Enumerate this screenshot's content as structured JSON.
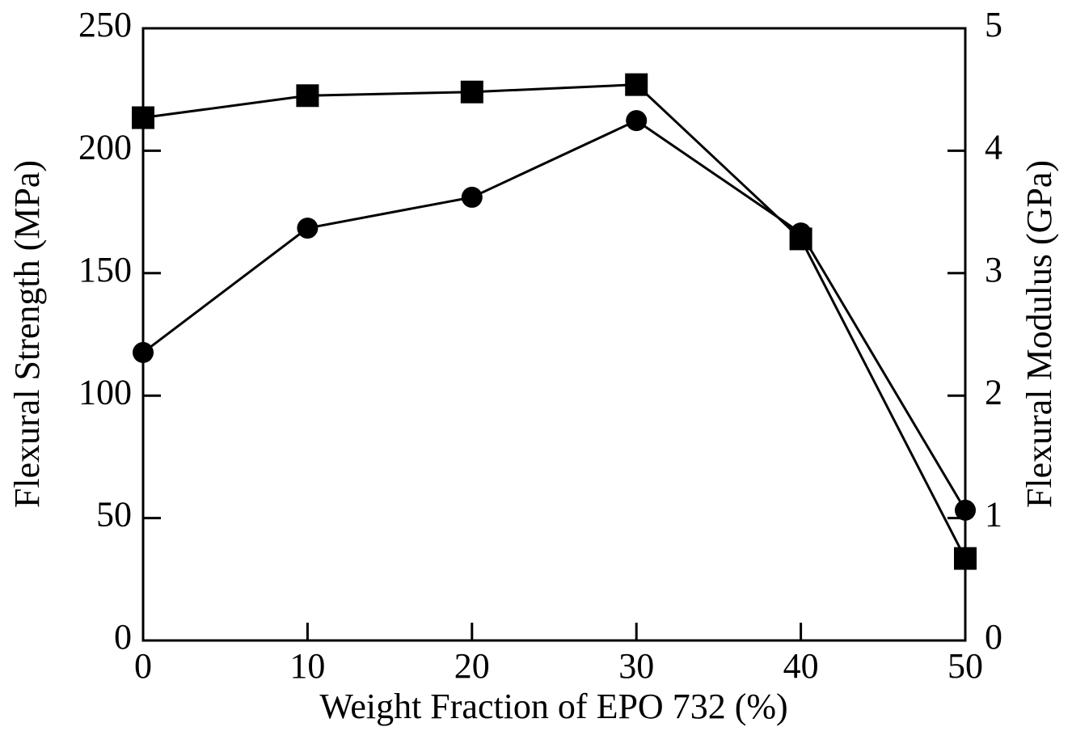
{
  "chart_data": {
    "type": "line",
    "xlabel": "Weight Fraction of EPO 732 (%)",
    "ylabel": "Flexural Strength (MPa)",
    "y2label": "Flexural Modulus (GPa)",
    "x": [
      0,
      10,
      20,
      30,
      40,
      50
    ],
    "xlim": [
      0,
      50
    ],
    "xticks": [
      0,
      10,
      20,
      30,
      40,
      50
    ],
    "ylim": [
      0,
      250
    ],
    "yticks": [
      0,
      50,
      100,
      150,
      200,
      250
    ],
    "y2lim": [
      0,
      5
    ],
    "y2ticks": [
      0,
      1,
      2,
      3,
      4,
      5
    ],
    "series": [
      {
        "marker": "circle",
        "color": "#000000",
        "values": [
          117.6,
          168.4,
          181,
          212.3,
          166.4,
          53.2
        ]
      },
      {
        "marker": "square",
        "color": "#000000",
        "axis": "y2",
        "values": [
          4.27,
          4.45,
          4.48,
          4.54,
          3.28,
          0.67
        ]
      }
    ]
  }
}
